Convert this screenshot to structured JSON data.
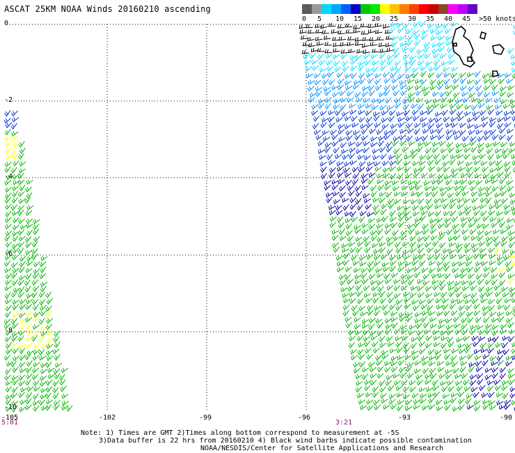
{
  "title": "ASCAT 25KM NOAA Winds 20160210 ascending",
  "legend": {
    "labels": [
      "0",
      "5",
      "10",
      "15",
      "20",
      "25",
      "30",
      "35",
      "40",
      "45",
      ">50 knots"
    ],
    "colors": [
      "#5a5a5a",
      "#9a9a9a",
      "#00d8ff",
      "#00a8ff",
      "#0060ff",
      "#0000c8",
      "#00c800",
      "#00e800",
      "#ffff00",
      "#ffc000",
      "#ff8000",
      "#ff4000",
      "#ff0000",
      "#c80000",
      "#8c4626",
      "#ff00ff",
      "#c000ff",
      "#6000c8"
    ]
  },
  "axes": {
    "lat_labels": [
      "0",
      "-2",
      "-4",
      "-6",
      "-8",
      "-10"
    ],
    "lon_labels": [
      "-105",
      "-102",
      "-99",
      "-96",
      "-93",
      "-90"
    ],
    "lat_range": [
      -10,
      0
    ],
    "lon_range": [
      -105,
      -90
    ],
    "grid": "dotted"
  },
  "times": [
    "5:01",
    "3:21"
  ],
  "notes": {
    "line1": "Note: 1) Times are GMT 2)Times along bottom correspond to measurement at -5S",
    "line2": "3)Data buffer is 22 hrs from 20160210 4) Black wind barbs indicate possible contamination",
    "line3": "NOAA/NESDIS/Center for Satellite Applications and Research"
  },
  "barb_colors": {
    "contaminated": "#000000",
    "light": "#00e0ff",
    "mid": "#0090ff",
    "blue": "#0030d0",
    "dark_blue": "#0000a0",
    "green": "#00b400",
    "yellow": "#ffff00"
  }
}
